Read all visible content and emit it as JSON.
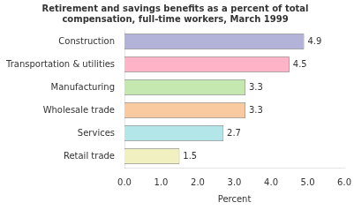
{
  "chart_data": {
    "type": "bar",
    "orientation": "horizontal",
    "title": [
      "Retirement and savings benefits as a percent of total",
      "compensation, full-time workers, March 1999"
    ],
    "x_label": "Percent",
    "categories": [
      "Retail trade",
      "Services",
      "Wholesale trade",
      "Manufacturing",
      "Transportation & utilities",
      "Construction"
    ],
    "values": [
      1.5,
      2.7,
      3.3,
      3.3,
      4.5,
      4.9
    ],
    "colors": [
      "#f0f0c0",
      "#b3e6e8",
      "#f9c9a0",
      "#c5e8b0",
      "#ffb3c6",
      "#b3b3d9"
    ],
    "xlim": [
      0,
      6.0
    ],
    "xticks": [
      {
        "value": 0.0,
        "label": "0.0"
      },
      {
        "value": 1.0,
        "label": "1.0"
      },
      {
        "value": 2.0,
        "label": "2.0"
      },
      {
        "value": 3.0,
        "label": "3.0"
      },
      {
        "value": 4.0,
        "label": "4.0"
      },
      {
        "value": 5.0,
        "label": "5.0"
      },
      {
        "value": 6.0,
        "label": "6.0"
      }
    ],
    "grid": false,
    "data_labels": true
  }
}
